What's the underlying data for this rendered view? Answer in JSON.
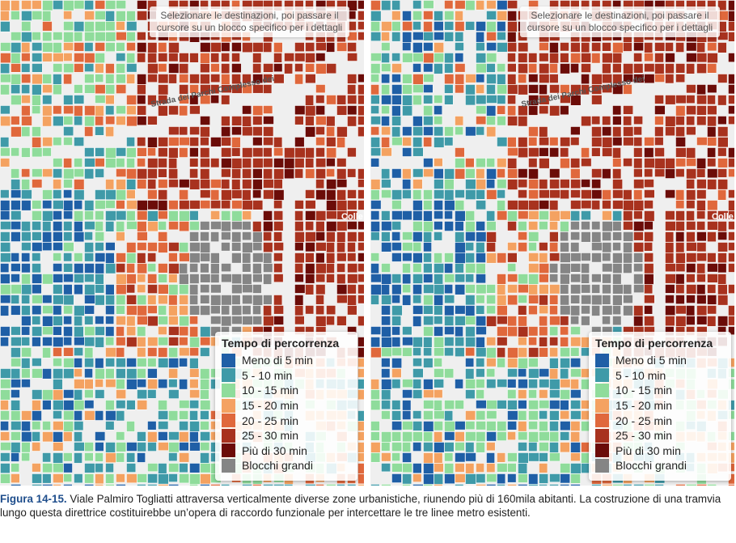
{
  "panels": [
    {
      "instruction": "Selezionare le destinazioni, poi passare il cursore su un blocco specifico per i dettagli",
      "street_labels": [
        "Strada dei Parchi Complesso dei",
        "Colle"
      ],
      "legend": {
        "title": "Tempo di percorrenza",
        "items": [
          {
            "label": "Meno di 5 min",
            "color": "#1f5fa6"
          },
          {
            "label": "5 - 10 min",
            "color": "#3f9aa8"
          },
          {
            "label": "10 - 15 min",
            "color": "#8fdc9b"
          },
          {
            "label": "15 - 20 min",
            "color": "#f4a261"
          },
          {
            "label": "20 - 25 min",
            "color": "#e0683c"
          },
          {
            "label": "25 - 30 min",
            "color": "#a8321e"
          },
          {
            "label": "Più di 30 min",
            "color": "#6b0c08"
          },
          {
            "label": "Blocchi grandi",
            "color": "#858585"
          }
        ]
      }
    },
    {
      "instruction": "Selezionare le destinazioni, poi passare il cursore su un blocco specifico per i dettagli",
      "street_labels": [
        "Strada dei Parchi Complesso dei",
        "Colle"
      ],
      "legend": {
        "title": "Tempo di percorrenza",
        "items": [
          {
            "label": "Meno di 5 min",
            "color": "#1f5fa6"
          },
          {
            "label": "5 - 10 min",
            "color": "#3f9aa8"
          },
          {
            "label": "10 - 15 min",
            "color": "#8fdc9b"
          },
          {
            "label": "15 - 20 min",
            "color": "#f4a261"
          },
          {
            "label": "20 - 25 min",
            "color": "#e0683c"
          },
          {
            "label": "25 - 30 min",
            "color": "#a8321e"
          },
          {
            "label": "Più di 30 min",
            "color": "#6b0c08"
          },
          {
            "label": "Blocchi grandi",
            "color": "#858585"
          }
        ]
      }
    }
  ],
  "caption": {
    "label": "Figura 14-15.",
    "text": "Viale Palmiro Togliatti attraversa verticalmente diverse zone urbanistiche, riunendo più di 160mila abitanti. La costruzione di una tramvia lungo questa direttrice costituirebbe un’opera di raccordo funzionale per intercettare le tre linee metro esistenti."
  }
}
